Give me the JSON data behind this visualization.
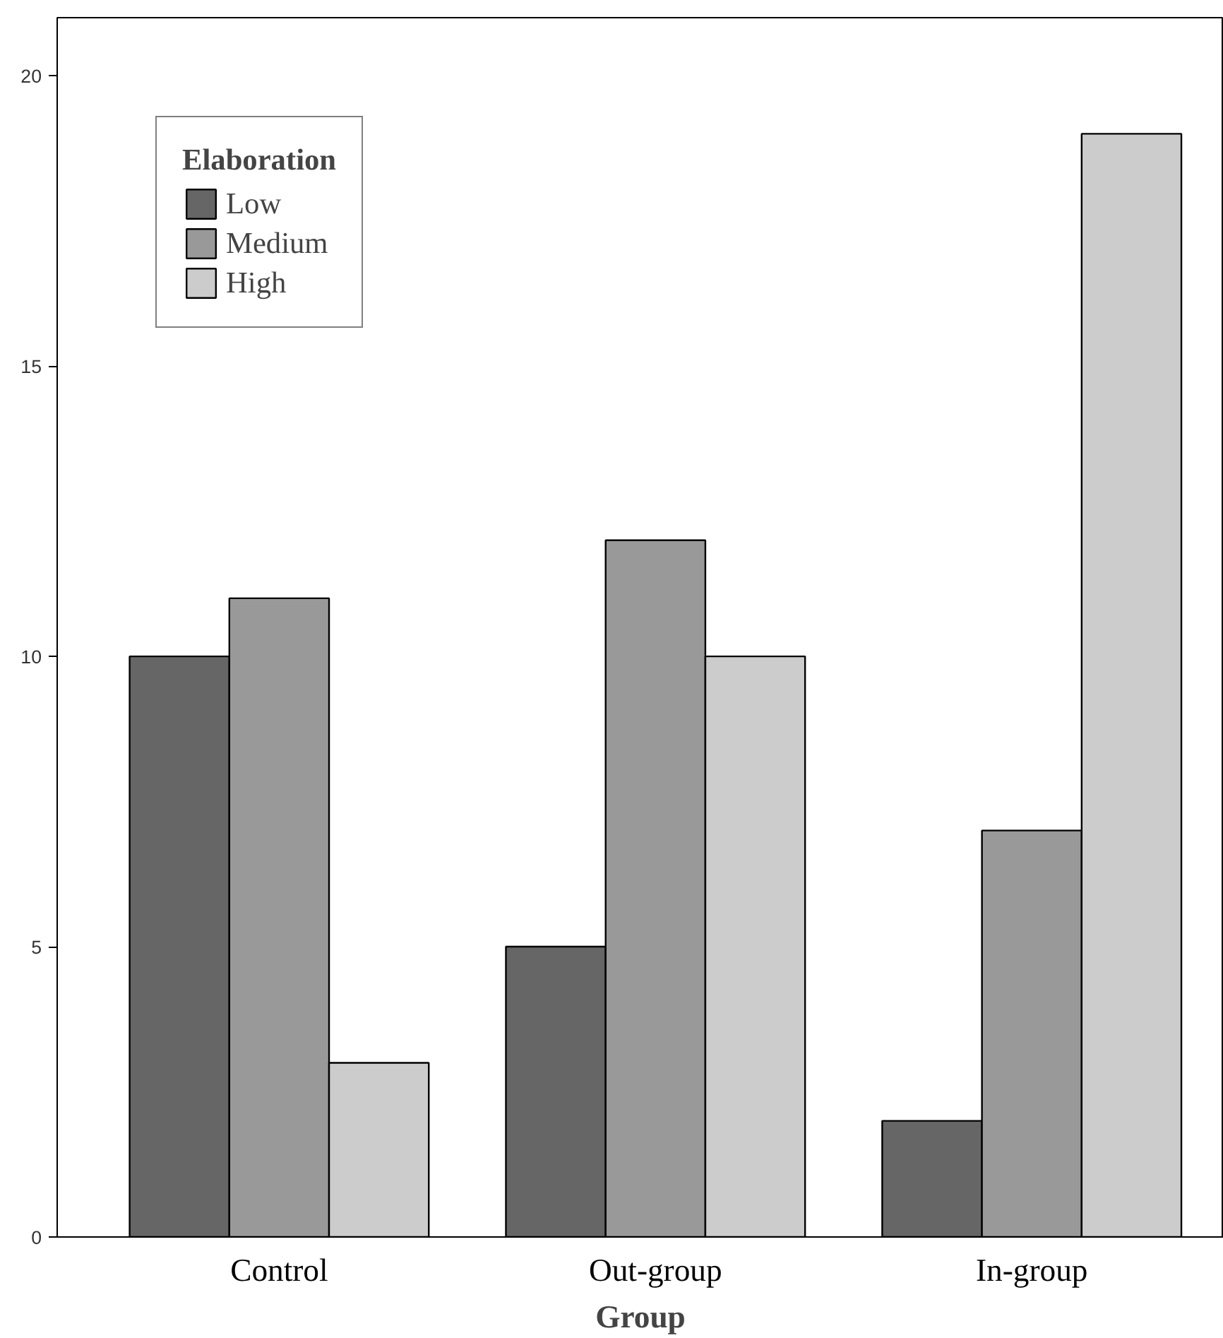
{
  "chart_data": {
    "type": "bar",
    "xlabel": "Group",
    "legend_title": "Elaboration",
    "categories": [
      "Control",
      "Out-group",
      "In-group"
    ],
    "series": [
      {
        "name": "Low",
        "color": "#666666",
        "values": [
          10,
          5,
          2
        ]
      },
      {
        "name": "Medium",
        "color": "#999999",
        "values": [
          11,
          12,
          7
        ]
      },
      {
        "name": "High",
        "color": "#cccccc",
        "values": [
          3,
          10,
          19
        ]
      }
    ],
    "ylim": [
      0,
      21
    ],
    "yticks": [
      0,
      5,
      10,
      15,
      20
    ],
    "grid": false,
    "legend": "top left"
  }
}
